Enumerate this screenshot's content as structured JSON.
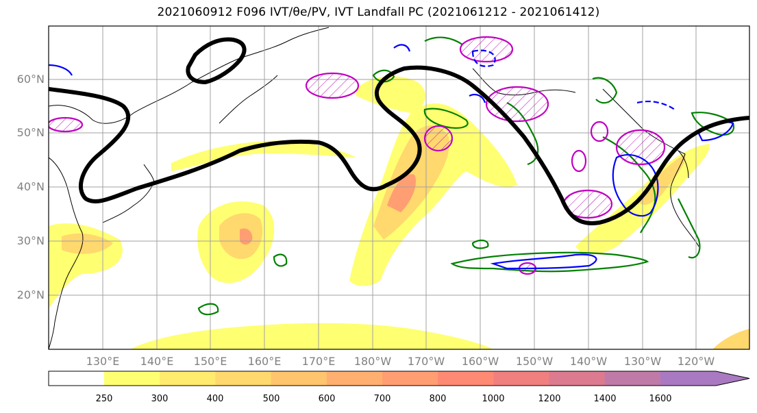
{
  "title": "2021060912 F096 IVT/θe/PV, IVT Landfall PC (2021061212 - 2021061412)",
  "lat_labels": [
    "60°N",
    "50°N",
    "40°N",
    "30°N",
    "20°N"
  ],
  "lon_labels": [
    "130°E",
    "140°E",
    "150°E",
    "160°E",
    "170°E",
    "180°W",
    "170°W",
    "160°W",
    "150°W",
    "140°W",
    "130°W",
    "120°W"
  ],
  "colorbar": {
    "ticks": [
      "250",
      "300",
      "400",
      "500",
      "600",
      "700",
      "800",
      "1000",
      "1200",
      "1400",
      "1600"
    ],
    "colors": [
      "#ffff72",
      "#ffeb6e",
      "#ffd86e",
      "#ffc46e",
      "#ffb070",
      "#ff9e72",
      "#ff8a74",
      "#f07f80",
      "#dc7a90",
      "#c07aa8",
      "#a97ac2"
    ]
  },
  "legend_colors": {
    "ivt_pc": "#000000",
    "theta_e": "#008000",
    "pv": "#c000c0",
    "ivt_neg": "#0000ff",
    "grid": "#a0a0a0"
  }
}
